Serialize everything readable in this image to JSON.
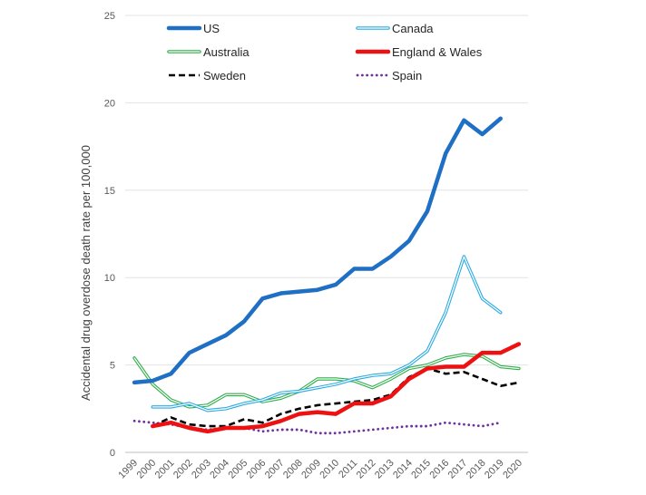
{
  "chart_data": {
    "type": "line",
    "title": "",
    "xlabel": "",
    "ylabel": "Accidental drug overdose death rate per 100,000",
    "ylim": [
      0,
      25
    ],
    "y_ticks": [
      "0",
      "5",
      "10",
      "15",
      "20",
      "25"
    ],
    "categories": [
      "1999",
      "2000",
      "2001",
      "2002",
      "2003",
      "2004",
      "2005",
      "2006",
      "2007",
      "2008",
      "2009",
      "2010",
      "2011",
      "2012",
      "2013",
      "2014",
      "2015",
      "2016",
      "2017",
      "2018",
      "2019",
      "2020"
    ],
    "grid": true,
    "legend_position": "top",
    "series": [
      {
        "name": "US",
        "color": "#1F6FC5",
        "style": "thick",
        "values": [
          4.0,
          4.1,
          4.5,
          5.7,
          6.2,
          6.7,
          7.5,
          8.8,
          9.1,
          9.2,
          9.3,
          9.6,
          10.5,
          10.5,
          11.2,
          12.1,
          13.8,
          17.1,
          19.0,
          18.2,
          19.1,
          null
        ]
      },
      {
        "name": "Canada",
        "color": "#29ABE2",
        "style": "double",
        "values": [
          null,
          2.6,
          2.6,
          2.8,
          2.4,
          2.5,
          2.8,
          3.0,
          3.4,
          3.5,
          3.7,
          3.9,
          4.2,
          4.4,
          4.5,
          5.0,
          5.8,
          8.0,
          11.2,
          8.8,
          8.0,
          null
        ]
      },
      {
        "name": "Australia",
        "color": "#2EAF4A",
        "style": "double",
        "values": [
          5.4,
          3.9,
          3.0,
          2.6,
          2.7,
          3.3,
          3.3,
          2.9,
          3.1,
          3.5,
          4.2,
          4.2,
          4.1,
          3.7,
          4.2,
          4.8,
          5.0,
          5.4,
          5.6,
          5.5,
          4.9,
          4.8
        ]
      },
      {
        "name": "England & Wales",
        "color": "#EE1111",
        "style": "thick",
        "values": [
          null,
          1.5,
          1.7,
          1.4,
          1.2,
          1.4,
          1.4,
          1.5,
          1.8,
          2.2,
          2.3,
          2.2,
          2.8,
          2.8,
          3.2,
          4.2,
          4.8,
          4.9,
          4.9,
          5.7,
          5.7,
          6.2
        ]
      },
      {
        "name": "Sweden",
        "color": "#000000",
        "style": "dashed",
        "values": [
          null,
          1.5,
          2.0,
          1.6,
          1.5,
          1.5,
          1.9,
          1.7,
          2.2,
          2.5,
          2.7,
          2.8,
          2.9,
          3.0,
          3.3,
          4.3,
          4.8,
          4.5,
          4.6,
          4.2,
          3.8,
          4.0
        ]
      },
      {
        "name": "Spain",
        "color": "#7030A0",
        "style": "dotted",
        "values": [
          1.8,
          1.7,
          1.6,
          1.4,
          1.3,
          1.4,
          1.4,
          1.2,
          1.3,
          1.3,
          1.1,
          1.1,
          1.2,
          1.3,
          1.4,
          1.5,
          1.5,
          1.7,
          1.6,
          1.5,
          1.7,
          null
        ]
      }
    ]
  }
}
